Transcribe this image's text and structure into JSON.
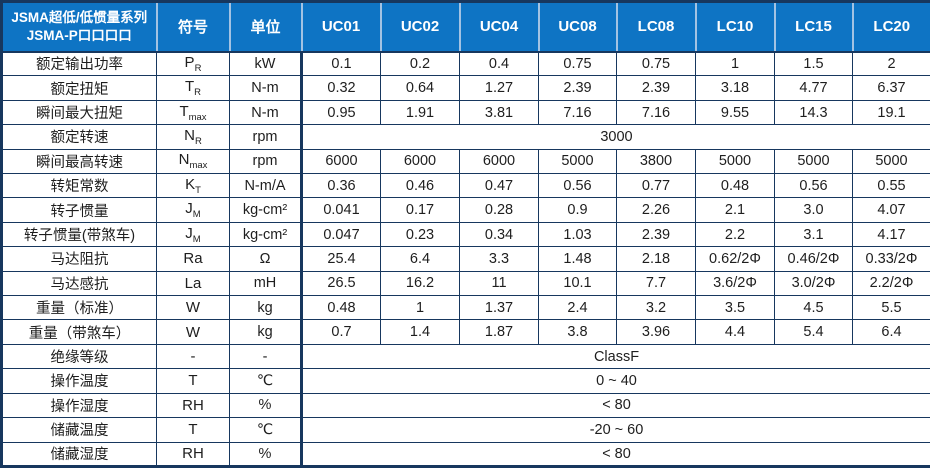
{
  "table": {
    "title_line1": "JSMA超低/低惯量系列",
    "title_line2": "JSMA-P口口口口",
    "symbol_header": "符号",
    "unit_header": "单位",
    "models": [
      "UC01",
      "UC02",
      "UC04",
      "UC08",
      "LC08",
      "LC10",
      "LC15",
      "LC20"
    ],
    "rows": [
      {
        "label": "额定输出功率",
        "symbol": "P",
        "sub": "R",
        "unit": "kW",
        "values": [
          "0.1",
          "0.2",
          "0.4",
          "0.75",
          "0.75",
          "1",
          "1.5",
          "2"
        ]
      },
      {
        "label": "额定扭矩",
        "symbol": "T",
        "sub": "R",
        "unit": "N-m",
        "values": [
          "0.32",
          "0.64",
          "1.27",
          "2.39",
          "2.39",
          "3.18",
          "4.77",
          "6.37"
        ]
      },
      {
        "label": "瞬间最大扭矩",
        "symbol": "T",
        "sub": "max",
        "unit": "N-m",
        "values": [
          "0.95",
          "1.91",
          "3.81",
          "7.16",
          "7.16",
          "9.55",
          "14.3",
          "19.1"
        ]
      },
      {
        "label": "额定转速",
        "symbol": "N",
        "sub": "R",
        "unit": "rpm",
        "merged": "3000"
      },
      {
        "label": "瞬间最高转速",
        "symbol": "N",
        "sub": "max",
        "unit": "rpm",
        "values": [
          "6000",
          "6000",
          "6000",
          "5000",
          "3800",
          "5000",
          "5000",
          "5000"
        ]
      },
      {
        "label": "转矩常数",
        "symbol": "K",
        "sub": "T",
        "unit": "N-m/A",
        "values": [
          "0.36",
          "0.46",
          "0.47",
          "0.56",
          "0.77",
          "0.48",
          "0.56",
          "0.55"
        ]
      },
      {
        "label": "转子惯量",
        "symbol": "J",
        "sub": "M",
        "unit": "kg-cm²",
        "values": [
          "0.041",
          "0.17",
          "0.28",
          "0.9",
          "2.26",
          "2.1",
          "3.0",
          "4.07"
        ]
      },
      {
        "label": "转子惯量(带煞车)",
        "symbol": "J",
        "sub": "M",
        "unit": "kg-cm²",
        "values": [
          "0.047",
          "0.23",
          "0.34",
          "1.03",
          "2.39",
          "2.2",
          "3.1",
          "4.17"
        ]
      },
      {
        "label": "马达阻抗",
        "symbol": "Ra",
        "sub": "",
        "unit": "Ω",
        "values": [
          "25.4",
          "6.4",
          "3.3",
          "1.48",
          "2.18",
          "0.62/2Φ",
          "0.46/2Φ",
          "0.33/2Φ"
        ]
      },
      {
        "label": "马达感抗",
        "symbol": "La",
        "sub": "",
        "unit": "mH",
        "values": [
          "26.5",
          "16.2",
          "11",
          "10.1",
          "7.7",
          "3.6/2Φ",
          "3.0/2Φ",
          "2.2/2Φ"
        ]
      },
      {
        "label": "重量（标准）",
        "symbol": "W",
        "sub": "",
        "unit": "kg",
        "values": [
          "0.48",
          "1",
          "1.37",
          "2.4",
          "3.2",
          "3.5",
          "4.5",
          "5.5"
        ]
      },
      {
        "label": "重量（带煞车）",
        "symbol": "W",
        "sub": "",
        "unit": "kg",
        "values": [
          "0.7",
          "1.4",
          "1.87",
          "3.8",
          "3.96",
          "4.4",
          "5.4",
          "6.4"
        ]
      },
      {
        "label": "绝缘等级",
        "symbol": "-",
        "sub": "",
        "unit": "-",
        "merged": "ClassF"
      },
      {
        "label": "操作温度",
        "symbol": "T",
        "sub": "",
        "unit": "℃",
        "merged": "0 ~ 40"
      },
      {
        "label": "操作湿度",
        "symbol": "RH",
        "sub": "",
        "unit": "%",
        "merged": "< 80"
      },
      {
        "label": "储藏温度",
        "symbol": "T",
        "sub": "",
        "unit": "℃",
        "merged": "-20 ~ 60"
      },
      {
        "label": "储藏湿度",
        "symbol": "RH",
        "sub": "",
        "unit": "%",
        "merged": "< 80"
      }
    ],
    "colors": {
      "header_bg": "#0e74c4",
      "header_divider": "#a3c3e3",
      "border": "#17375e",
      "text": "#1e1e1e"
    }
  }
}
